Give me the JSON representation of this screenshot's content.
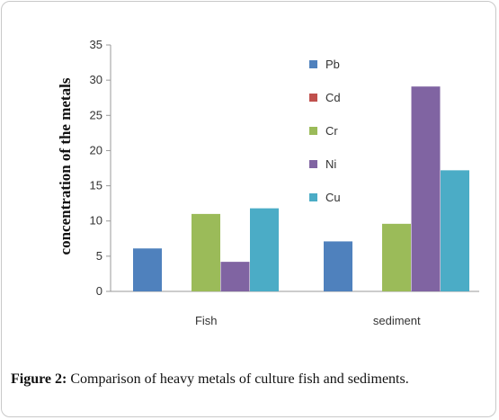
{
  "chart_data": {
    "type": "bar",
    "categories": [
      "Fish",
      "sediment"
    ],
    "series": [
      {
        "name": "Pb",
        "values": [
          6.1,
          7.1
        ],
        "color": "#4f81bd"
      },
      {
        "name": "Cd",
        "values": [
          0,
          0
        ],
        "color": "#c0504d"
      },
      {
        "name": "Cr",
        "values": [
          11.0,
          9.6
        ],
        "color": "#9bbb59"
      },
      {
        "name": "Ni",
        "values": [
          4.2,
          29.1
        ],
        "color": "#8064a2"
      },
      {
        "name": "Cu",
        "values": [
          11.8,
          17.2
        ],
        "color": "#4bacc6"
      }
    ],
    "ylabel": "concentration of the metals",
    "ylim": [
      0,
      35
    ],
    "yticks": [
      "0",
      "5",
      "10",
      "15",
      "20",
      "25",
      "30",
      "35"
    ],
    "grid": false,
    "legend": "top-right"
  },
  "caption": {
    "lead": "Figure 2:",
    "text": " Comparison of heavy metals of culture fish and sediments."
  }
}
